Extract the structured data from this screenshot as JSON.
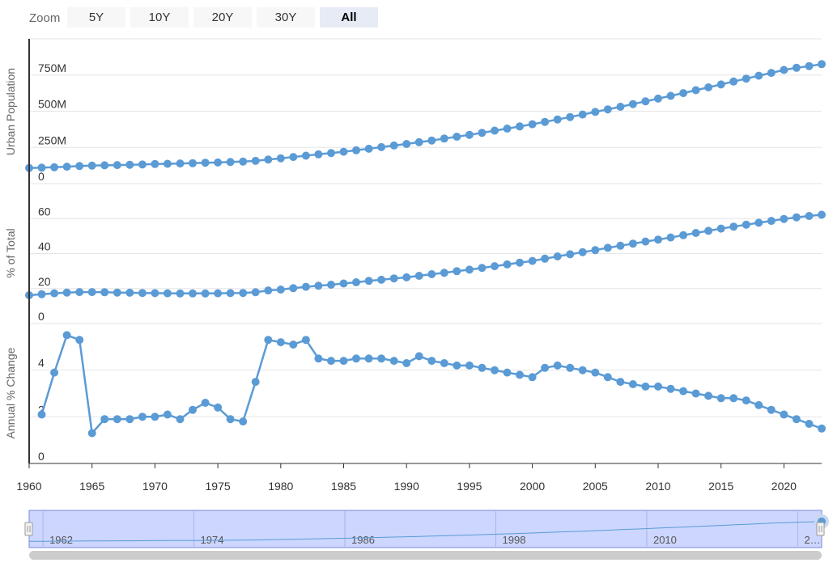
{
  "zoom": {
    "label": "Zoom",
    "buttons": [
      "5Y",
      "10Y",
      "20Y",
      "30Y",
      "All"
    ],
    "selected": "All"
  },
  "colors": {
    "series": "#5b9bd5",
    "navigator_fill": "#ccd6ff",
    "navigator_border": "#7788dd",
    "grid": "#e6e6e6",
    "axis": "#333333",
    "scrollbar": "#cccccc"
  },
  "navigator": {
    "labels": [
      "1962",
      "1974",
      "1986",
      "1998",
      "2010",
      "2…"
    ]
  },
  "chart_data": [
    {
      "type": "line",
      "ylabel": "Urban Population",
      "ylim": [
        0,
        1000000000
      ],
      "yticks": [
        0,
        250000000,
        500000000,
        750000000
      ],
      "ytick_labels": [
        "0",
        "250M",
        "500M",
        "750M"
      ],
      "x": [
        1960,
        1961,
        1962,
        1963,
        1964,
        1965,
        1966,
        1967,
        1968,
        1969,
        1970,
        1971,
        1972,
        1973,
        1974,
        1975,
        1976,
        1977,
        1978,
        1979,
        1980,
        1981,
        1982,
        1983,
        1984,
        1985,
        1986,
        1987,
        1988,
        1989,
        1990,
        1991,
        1992,
        1993,
        1994,
        1995,
        1996,
        1997,
        1998,
        1999,
        2000,
        2001,
        2002,
        2003,
        2004,
        2005,
        2006,
        2007,
        2008,
        2009,
        2010,
        2011,
        2012,
        2013,
        2014,
        2015,
        2016,
        2017,
        2018,
        2019,
        2020,
        2021,
        2022,
        2023
      ],
      "series": [
        {
          "values": [
            108000000,
            110000000,
            113000000,
            117000000,
            121000000,
            124000000,
            126000000,
            128000000,
            130000000,
            132000000,
            135000000,
            137000000,
            139000000,
            141000000,
            144000000,
            146000000,
            149000000,
            152000000,
            157000000,
            166000000,
            175000000,
            184000000,
            193000000,
            202000000,
            211000000,
            220000000,
            230000000,
            241000000,
            252000000,
            263000000,
            274000000,
            286000000,
            298000000,
            311000000,
            324000000,
            337000000,
            351000000,
            366000000,
            380000000,
            395000000,
            410000000,
            426000000,
            443000000,
            460000000,
            477000000,
            495000000,
            513000000,
            531000000,
            549000000,
            568000000,
            587000000,
            606000000,
            625000000,
            645000000,
            665000000,
            685000000,
            705000000,
            725000000,
            745000000,
            765000000,
            785000000,
            800000000,
            812000000,
            825000000
          ]
        }
      ]
    },
    {
      "type": "line",
      "ylabel": "% of Total",
      "ylim": [
        0,
        80
      ],
      "yticks": [
        0,
        20,
        40,
        60
      ],
      "ytick_labels": [
        "0",
        "20",
        "40",
        "60"
      ],
      "x": [
        1960,
        1961,
        1962,
        1963,
        1964,
        1965,
        1966,
        1967,
        1968,
        1969,
        1970,
        1971,
        1972,
        1973,
        1974,
        1975,
        1976,
        1977,
        1978,
        1979,
        1980,
        1981,
        1982,
        1983,
        1984,
        1985,
        1986,
        1987,
        1988,
        1989,
        1990,
        1991,
        1992,
        1993,
        1994,
        1995,
        1996,
        1997,
        1998,
        1999,
        2000,
        2001,
        2002,
        2003,
        2004,
        2005,
        2006,
        2007,
        2008,
        2009,
        2010,
        2011,
        2012,
        2013,
        2014,
        2015,
        2016,
        2017,
        2018,
        2019,
        2020,
        2021,
        2022,
        2023
      ],
      "series": [
        {
          "values": [
            16.2,
            16.8,
            17.3,
            17.7,
            18.0,
            18.0,
            17.9,
            17.7,
            17.6,
            17.5,
            17.4,
            17.3,
            17.2,
            17.2,
            17.2,
            17.3,
            17.4,
            17.5,
            17.9,
            18.9,
            19.4,
            20.2,
            21.0,
            21.6,
            22.2,
            22.9,
            23.6,
            24.4,
            25.0,
            25.8,
            26.4,
            27.3,
            28.2,
            29.0,
            29.9,
            30.8,
            31.8,
            32.8,
            33.8,
            34.8,
            35.8,
            37.1,
            38.4,
            39.6,
            40.8,
            42.0,
            43.3,
            44.5,
            45.7,
            46.9,
            48.0,
            49.2,
            50.5,
            51.8,
            53.0,
            54.3,
            55.4,
            56.5,
            57.6,
            58.7,
            59.8,
            60.7,
            61.5,
            62.2
          ]
        }
      ]
    },
    {
      "type": "line",
      "ylabel": "Annual % Change",
      "ylim": [
        0,
        6
      ],
      "yticks": [
        0,
        2,
        4
      ],
      "ytick_labels": [
        "0",
        "2",
        "4"
      ],
      "x": [
        1961,
        1962,
        1963,
        1964,
        1965,
        1966,
        1967,
        1968,
        1969,
        1970,
        1971,
        1972,
        1973,
        1974,
        1975,
        1976,
        1977,
        1978,
        1979,
        1980,
        1981,
        1982,
        1983,
        1984,
        1985,
        1986,
        1987,
        1988,
        1989,
        1990,
        1991,
        1992,
        1993,
        1994,
        1995,
        1996,
        1997,
        1998,
        1999,
        2000,
        2001,
        2002,
        2003,
        2004,
        2005,
        2006,
        2007,
        2008,
        2009,
        2010,
        2011,
        2012,
        2013,
        2014,
        2015,
        2016,
        2017,
        2018,
        2019,
        2020,
        2021,
        2022,
        2023
      ],
      "series": [
        {
          "values": [
            2.1,
            3.9,
            5.5,
            5.3,
            1.3,
            1.9,
            1.9,
            1.9,
            2.0,
            2.0,
            2.1,
            1.9,
            2.3,
            2.6,
            2.4,
            1.9,
            1.8,
            3.5,
            5.3,
            5.2,
            5.1,
            5.3,
            4.5,
            4.4,
            4.4,
            4.5,
            4.5,
            4.5,
            4.4,
            4.3,
            4.6,
            4.4,
            4.3,
            4.2,
            4.2,
            4.1,
            4.0,
            3.9,
            3.8,
            3.7,
            4.1,
            4.2,
            4.1,
            4.0,
            3.9,
            3.7,
            3.5,
            3.4,
            3.3,
            3.3,
            3.2,
            3.1,
            3.0,
            2.9,
            2.8,
            2.8,
            2.7,
            2.5,
            2.3,
            2.1,
            1.9,
            1.7,
            1.5
          ]
        }
      ]
    }
  ],
  "x_axis": {
    "ticks": [
      1960,
      1965,
      1970,
      1975,
      1980,
      1985,
      1990,
      1995,
      2000,
      2005,
      2010,
      2015,
      2020
    ],
    "labels": [
      "1960",
      "1965",
      "1970",
      "1975",
      "1980",
      "1985",
      "1990",
      "1995",
      "2000",
      "2005",
      "2010",
      "2015",
      "2020"
    ],
    "xlim": [
      1960,
      2023
    ]
  }
}
